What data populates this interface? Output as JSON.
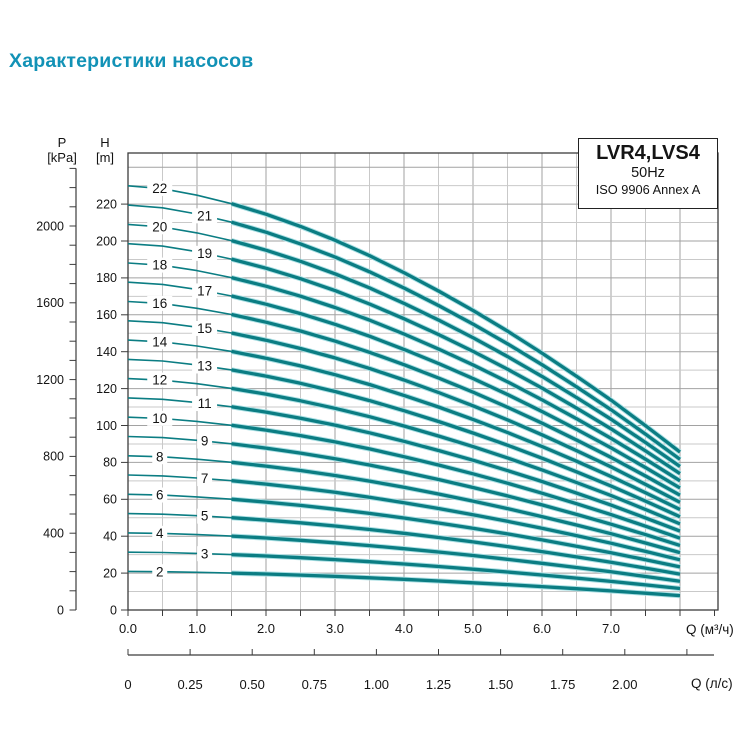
{
  "page": {
    "title": "Характеристики насосов"
  },
  "colors": {
    "title": "#1292b6",
    "curve": "#0b7d83",
    "curve_halo": "#aadfe3",
    "grid_minor": "#c9c9c9",
    "grid_major": "#a2a2a2",
    "axis": "#3c3c3c",
    "text": "#141414"
  },
  "info_box": {
    "model": "LVR4,LVS4",
    "frequency": "50Hz",
    "standard": "ISO 9906 Annex A"
  },
  "chart_data": {
    "type": "line",
    "title": "LVR4,LVS4 50Hz ISO 9906 Annex A",
    "grid": "on, minor every 0.5 м³/ч and 10 m, major every 1.0 м³/ч and 20 m",
    "x_axis_m3h": {
      "label": "Q (м³/ч)",
      "tick_labels": [
        "0.0",
        "1.0",
        "2.0",
        "3.0",
        "4.0",
        "5.0",
        "6.0",
        "7.0"
      ],
      "minor_tick_step": 0.5,
      "range": [
        0,
        8.55
      ]
    },
    "x_axis_ls": {
      "label": "Q (л/с)",
      "tick_labels": [
        "0",
        "0.25",
        "0.50",
        "0.75",
        "1.00",
        "1.25",
        "1.50",
        "1.75",
        "2.00"
      ],
      "tick_step": 0.25,
      "m3h_per_ls": 3.6
    },
    "y_axis_pressure": {
      "name": "P",
      "unit": "[kPa]",
      "tick_labels": [
        0,
        400,
        800,
        1200,
        1600,
        2000
      ],
      "minor_tick_step": 100,
      "range": [
        0,
        2300
      ]
    },
    "y_axis_head": {
      "name": "H",
      "unit": "[m]",
      "tick_labels": [
        0,
        20,
        40,
        60,
        80,
        100,
        120,
        140,
        160,
        180,
        200,
        220
      ],
      "range": [
        0,
        247
      ]
    },
    "series_stages": [
      2,
      3,
      4,
      5,
      6,
      7,
      8,
      9,
      10,
      11,
      12,
      13,
      14,
      15,
      16,
      17,
      18,
      19,
      20,
      21,
      22
    ],
    "flow_m3h": [
      0,
      0.5,
      1,
      1.5,
      2,
      2.5,
      3,
      3.5,
      4,
      4.5,
      5,
      5.5,
      6,
      6.5,
      7,
      7.5,
      8
    ],
    "head_per_stage_m": [
      10.45,
      10.38,
      10.22,
      10.01,
      9.75,
      9.45,
      9.11,
      8.73,
      8.31,
      7.86,
      7.38,
      6.87,
      6.33,
      5.76,
      5.17,
      4.54,
      3.89
    ],
    "series_rule": "curve head H(Q) = stage_count × head_per_stage_m(Q); thin segment Q 0–1.5, thick segment Q 1.5–8.0",
    "curve_label_flow_even": 0.46,
    "curve_label_flow_odd": 1.11
  }
}
